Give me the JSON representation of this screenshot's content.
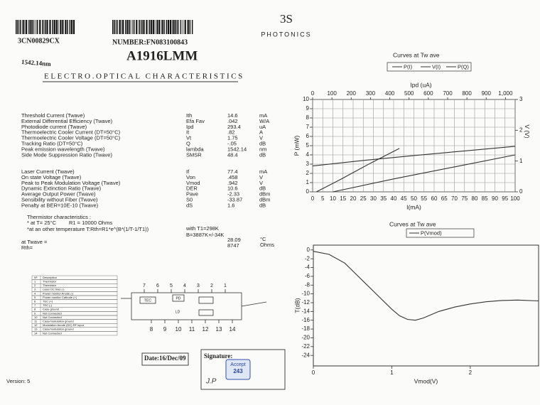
{
  "header": {
    "serial": "3CN00829CX",
    "wavelength": "1542.14nm",
    "number": "NUMBER:FN083100843",
    "model": "A1916LMM",
    "logo": "3S",
    "brand": "PHOTONICS",
    "section": "ELECTRO.OPTICAL CHARACTERISTICS"
  },
  "params1": {
    "rows": [
      [
        "Threshold Current (Twave)",
        "Ith",
        "14.6",
        "mA"
      ],
      [
        "External Differential Efficiency (Twave)",
        "Efa Fav",
        ".042",
        "W/A"
      ],
      [
        "Photodiode current (Twave)",
        "Ipd",
        "293.4",
        "uA"
      ],
      [
        "Thermoelectric Cooler Current (DT=50°C)",
        "It",
        ".82",
        "A"
      ],
      [
        "Thermoelectric Cooler Voltage (DT=50°C)",
        "Vt",
        "1.75",
        "V"
      ],
      [
        "Tracking Ratio (DT=50°C)",
        "Q",
        "-.05",
        "dB"
      ],
      [
        "Peak emission wavelength (Twave)",
        "lambda",
        "1542.14",
        "nm"
      ],
      [
        "Side Mode Suppression Ratio (Twave)",
        "SMSR",
        "48.4",
        "dB"
      ]
    ]
  },
  "params2": {
    "rows": [
      [
        "Laser Current (Twave)",
        "If",
        "77.4",
        "mA"
      ],
      [
        "On state Voltage (Twave)",
        "Von",
        ".458",
        "V"
      ],
      [
        "Peak to Peak Modulation Voltage (Twave)",
        "Vmod",
        ".942",
        "V"
      ],
      [
        "Dynamic Extinction Ratio (Twave)",
        "DER",
        "10.6",
        "dB"
      ],
      [
        "Average Output Power (Twave)",
        "Pave",
        "-2.33",
        "dBm"
      ],
      [
        "Sensibility without Fiber (Twave)",
        "S0",
        "-33.87",
        "dBm"
      ],
      [
        "Penalty at BER=10E-10 (Twave)",
        "dS",
        "1.6",
        "dB"
      ]
    ]
  },
  "thermistor": {
    "title": "Thermistor characteristics :",
    "at25": "* at T= 25°C",
    "r1": "R1 = 10000 Ohms",
    "formula": "*at an other temperature T:Rth=R1*e^(B*(1/T-1/T1))",
    "t1": "with T1=298K",
    "b": "B=3887K+/-34K",
    "twave_label": "at Twave =",
    "twave": "28.09",
    "twave_unit": "°C",
    "rth_label": "Rth=",
    "rth": "8747",
    "rth_unit": "Ohms"
  },
  "pins": {
    "rows": [
      [
        "Nº",
        "Description"
      ],
      [
        "1",
        "Thermistor"
      ],
      [
        "2",
        "Thermistor"
      ],
      [
        "3",
        "Laser DC bias (-)"
      ],
      [
        "4",
        "Power monitor Anode (-)"
      ],
      [
        "5",
        "Power monitor Cathode (+)"
      ],
      [
        "6",
        "TEC (+)"
      ],
      [
        "7",
        "TEC (-)"
      ],
      [
        "8",
        "Case ground"
      ],
      [
        "9",
        "Not Connected"
      ],
      [
        "10",
        "Not Connected"
      ],
      [
        "11",
        "Case/modulation ground"
      ],
      [
        "12",
        "Modulation Anode (DC) RF input"
      ],
      [
        "13",
        "Case/modulation ground"
      ],
      [
        "14",
        "Not Connected"
      ]
    ],
    "top": [
      "7",
      "6",
      "5",
      "4",
      "3",
      "2",
      "1"
    ],
    "bottom": [
      "8",
      "9",
      "10",
      "11",
      "12",
      "13",
      "14"
    ],
    "pd": "PD",
    "tec": "TEC",
    "ld": "LD"
  },
  "footer": {
    "date": "Date:16/Dec/09",
    "signature": "Signature:",
    "stamp": "Accept",
    "stamp_no": "243",
    "initials": "J.P",
    "version": "Version: 5"
  },
  "chart_data": [
    {
      "type": "line",
      "title": "Curves at Tw ave",
      "xlabel": "I(mA)",
      "ylabel": "P (mW)",
      "x2label": "Ipd (uA)",
      "y2label": "V (V)",
      "grid": true,
      "xlim": [
        0,
        100
      ],
      "xticks": [
        0,
        5,
        10,
        15,
        20,
        25,
        30,
        35,
        40,
        45,
        50,
        55,
        60,
        65,
        70,
        75,
        80,
        85,
        90,
        95,
        100
      ],
      "ylim": [
        0,
        10
      ],
      "yticks": [
        0,
        1,
        2,
        3,
        4,
        5,
        6,
        7,
        8,
        9,
        10
      ],
      "x2lim": [
        0,
        1050
      ],
      "x2ticks": [
        0,
        100,
        200,
        300,
        400,
        500,
        600,
        700,
        800,
        900,
        {
          "value": 1000,
          "label": "1,000"
        }
      ],
      "y2lim": [
        0,
        3
      ],
      "y2ticks": [
        0,
        1,
        2,
        3
      ],
      "series": [
        {
          "name": "P(I)",
          "color": "#333333",
          "x": [
            10,
            40,
            70,
            100
          ],
          "values": [
            0,
            1.4,
            2.7,
            4.0
          ]
        },
        {
          "name": "V(I)",
          "color": "#333333",
          "axis": "y2",
          "x": [
            0,
            25,
            50,
            75,
            100
          ],
          "values": [
            0.84,
            1.02,
            1.18,
            1.33,
            1.48
          ]
        },
        {
          "name": "P(Q)",
          "color": "#333333",
          "axis": "x2",
          "x": [
            20,
            150,
            300,
            450
          ],
          "values": [
            0,
            1.4,
            3.1,
            4.7
          ]
        }
      ]
    },
    {
      "type": "line",
      "title": "Curves at Tw ave",
      "xlabel": "Vmod(V)",
      "ylabel": "T(dB)",
      "grid": false,
      "xlim": [
        0,
        2.87
      ],
      "xticks": [
        0,
        1,
        2
      ],
      "ylim": [
        -26.4,
        1.1
      ],
      "yticks": [
        0,
        -2,
        -4,
        -6,
        -8,
        -10,
        -12,
        -14,
        -16,
        -18,
        -20,
        -22,
        -24
      ],
      "series": [
        {
          "name": "P(Vmod)",
          "color": "#333333",
          "x": [
            0,
            0.2,
            0.4,
            0.6,
            0.8,
            1.0,
            1.1,
            1.2,
            1.3,
            1.4,
            1.6,
            1.8,
            2.0,
            2.2,
            2.4,
            2.6,
            2.87
          ],
          "values": [
            -0.3,
            -1,
            -3,
            -6.5,
            -10,
            -13.5,
            -15,
            -15.8,
            -16,
            -15.5,
            -14,
            -13,
            -12.3,
            -11.8,
            -11.5,
            -11.4,
            -11.6
          ]
        }
      ]
    }
  ]
}
